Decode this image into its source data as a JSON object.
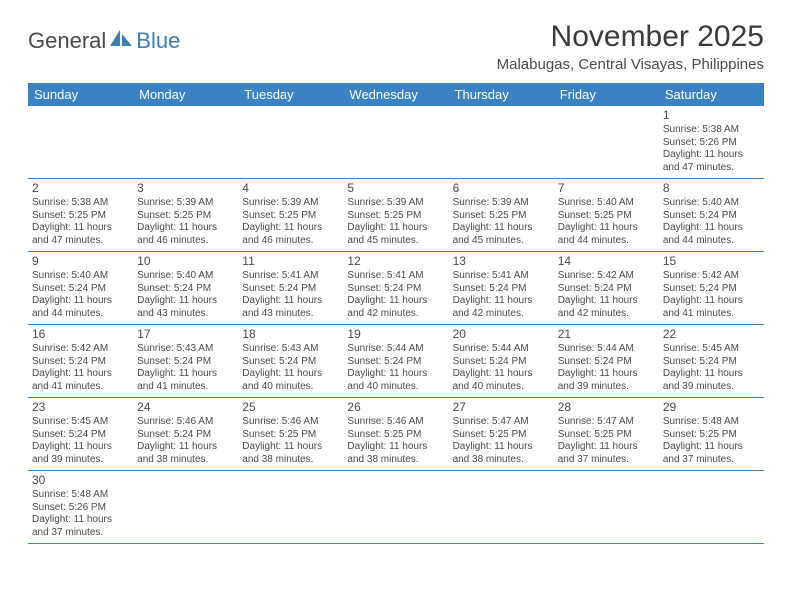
{
  "brand": {
    "general": "General",
    "blue": "Blue"
  },
  "title": "November 2025",
  "location": "Malabugas, Central Visayas, Philippines",
  "colors": {
    "header_bg": "#3a82c4",
    "header_text": "#ffffff",
    "row_border": "#3a82c4",
    "text": "#4a4a4a",
    "background": "#ffffff",
    "brand_blue": "#3a7db8"
  },
  "weekdays": [
    "Sunday",
    "Monday",
    "Tuesday",
    "Wednesday",
    "Thursday",
    "Friday",
    "Saturday"
  ],
  "weeks": [
    [
      null,
      null,
      null,
      null,
      null,
      null,
      {
        "n": "1",
        "sr": "Sunrise: 5:38 AM",
        "ss": "Sunset: 5:26 PM",
        "d1": "Daylight: 11 hours",
        "d2": "and 47 minutes."
      }
    ],
    [
      {
        "n": "2",
        "sr": "Sunrise: 5:38 AM",
        "ss": "Sunset: 5:25 PM",
        "d1": "Daylight: 11 hours",
        "d2": "and 47 minutes."
      },
      {
        "n": "3",
        "sr": "Sunrise: 5:39 AM",
        "ss": "Sunset: 5:25 PM",
        "d1": "Daylight: 11 hours",
        "d2": "and 46 minutes."
      },
      {
        "n": "4",
        "sr": "Sunrise: 5:39 AM",
        "ss": "Sunset: 5:25 PM",
        "d1": "Daylight: 11 hours",
        "d2": "and 46 minutes."
      },
      {
        "n": "5",
        "sr": "Sunrise: 5:39 AM",
        "ss": "Sunset: 5:25 PM",
        "d1": "Daylight: 11 hours",
        "d2": "and 45 minutes."
      },
      {
        "n": "6",
        "sr": "Sunrise: 5:39 AM",
        "ss": "Sunset: 5:25 PM",
        "d1": "Daylight: 11 hours",
        "d2": "and 45 minutes."
      },
      {
        "n": "7",
        "sr": "Sunrise: 5:40 AM",
        "ss": "Sunset: 5:25 PM",
        "d1": "Daylight: 11 hours",
        "d2": "and 44 minutes."
      },
      {
        "n": "8",
        "sr": "Sunrise: 5:40 AM",
        "ss": "Sunset: 5:24 PM",
        "d1": "Daylight: 11 hours",
        "d2": "and 44 minutes."
      }
    ],
    [
      {
        "n": "9",
        "sr": "Sunrise: 5:40 AM",
        "ss": "Sunset: 5:24 PM",
        "d1": "Daylight: 11 hours",
        "d2": "and 44 minutes."
      },
      {
        "n": "10",
        "sr": "Sunrise: 5:40 AM",
        "ss": "Sunset: 5:24 PM",
        "d1": "Daylight: 11 hours",
        "d2": "and 43 minutes."
      },
      {
        "n": "11",
        "sr": "Sunrise: 5:41 AM",
        "ss": "Sunset: 5:24 PM",
        "d1": "Daylight: 11 hours",
        "d2": "and 43 minutes."
      },
      {
        "n": "12",
        "sr": "Sunrise: 5:41 AM",
        "ss": "Sunset: 5:24 PM",
        "d1": "Daylight: 11 hours",
        "d2": "and 42 minutes."
      },
      {
        "n": "13",
        "sr": "Sunrise: 5:41 AM",
        "ss": "Sunset: 5:24 PM",
        "d1": "Daylight: 11 hours",
        "d2": "and 42 minutes."
      },
      {
        "n": "14",
        "sr": "Sunrise: 5:42 AM",
        "ss": "Sunset: 5:24 PM",
        "d1": "Daylight: 11 hours",
        "d2": "and 42 minutes."
      },
      {
        "n": "15",
        "sr": "Sunrise: 5:42 AM",
        "ss": "Sunset: 5:24 PM",
        "d1": "Daylight: 11 hours",
        "d2": "and 41 minutes."
      }
    ],
    [
      {
        "n": "16",
        "sr": "Sunrise: 5:42 AM",
        "ss": "Sunset: 5:24 PM",
        "d1": "Daylight: 11 hours",
        "d2": "and 41 minutes."
      },
      {
        "n": "17",
        "sr": "Sunrise: 5:43 AM",
        "ss": "Sunset: 5:24 PM",
        "d1": "Daylight: 11 hours",
        "d2": "and 41 minutes."
      },
      {
        "n": "18",
        "sr": "Sunrise: 5:43 AM",
        "ss": "Sunset: 5:24 PM",
        "d1": "Daylight: 11 hours",
        "d2": "and 40 minutes."
      },
      {
        "n": "19",
        "sr": "Sunrise: 5:44 AM",
        "ss": "Sunset: 5:24 PM",
        "d1": "Daylight: 11 hours",
        "d2": "and 40 minutes."
      },
      {
        "n": "20",
        "sr": "Sunrise: 5:44 AM",
        "ss": "Sunset: 5:24 PM",
        "d1": "Daylight: 11 hours",
        "d2": "and 40 minutes."
      },
      {
        "n": "21",
        "sr": "Sunrise: 5:44 AM",
        "ss": "Sunset: 5:24 PM",
        "d1": "Daylight: 11 hours",
        "d2": "and 39 minutes."
      },
      {
        "n": "22",
        "sr": "Sunrise: 5:45 AM",
        "ss": "Sunset: 5:24 PM",
        "d1": "Daylight: 11 hours",
        "d2": "and 39 minutes."
      }
    ],
    [
      {
        "n": "23",
        "sr": "Sunrise: 5:45 AM",
        "ss": "Sunset: 5:24 PM",
        "d1": "Daylight: 11 hours",
        "d2": "and 39 minutes."
      },
      {
        "n": "24",
        "sr": "Sunrise: 5:46 AM",
        "ss": "Sunset: 5:24 PM",
        "d1": "Daylight: 11 hours",
        "d2": "and 38 minutes."
      },
      {
        "n": "25",
        "sr": "Sunrise: 5:46 AM",
        "ss": "Sunset: 5:25 PM",
        "d1": "Daylight: 11 hours",
        "d2": "and 38 minutes."
      },
      {
        "n": "26",
        "sr": "Sunrise: 5:46 AM",
        "ss": "Sunset: 5:25 PM",
        "d1": "Daylight: 11 hours",
        "d2": "and 38 minutes."
      },
      {
        "n": "27",
        "sr": "Sunrise: 5:47 AM",
        "ss": "Sunset: 5:25 PM",
        "d1": "Daylight: 11 hours",
        "d2": "and 38 minutes."
      },
      {
        "n": "28",
        "sr": "Sunrise: 5:47 AM",
        "ss": "Sunset: 5:25 PM",
        "d1": "Daylight: 11 hours",
        "d2": "and 37 minutes."
      },
      {
        "n": "29",
        "sr": "Sunrise: 5:48 AM",
        "ss": "Sunset: 5:25 PM",
        "d1": "Daylight: 11 hours",
        "d2": "and 37 minutes."
      }
    ],
    [
      {
        "n": "30",
        "sr": "Sunrise: 5:48 AM",
        "ss": "Sunset: 5:26 PM",
        "d1": "Daylight: 11 hours",
        "d2": "and 37 minutes."
      },
      null,
      null,
      null,
      null,
      null,
      null
    ]
  ]
}
